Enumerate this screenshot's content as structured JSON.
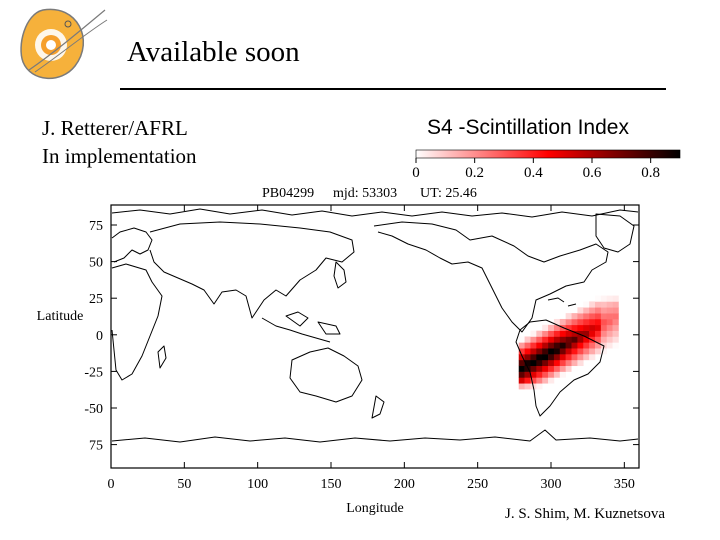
{
  "slide": {
    "title": "Available soon",
    "credit_lines": [
      "J. Retterer/AFRL",
      "In implementation"
    ],
    "footer_credit": "J. S. Shim, M. Kuznetsova",
    "logo_icon": "sun-icon"
  },
  "colorbar": {
    "title": "S4 -Scintillation Index",
    "ticks": [
      "0",
      "0.2",
      "0.4",
      "0.6",
      "0.8"
    ],
    "range": [
      0,
      0.9
    ],
    "colors": [
      "#ffffff",
      "#ff0000",
      "#000000"
    ]
  },
  "map": {
    "run_label": "PB04299",
    "mjd_label": "mjd: 53303",
    "ut_label": "UT: 25.46",
    "xlabel": "Longitude",
    "ylabel": "Latitude",
    "lon_range": [
      0,
      360
    ],
    "lat_range": [
      -90,
      90
    ],
    "lon_ticks": [
      "0",
      "50",
      "100",
      "150",
      "200",
      "250",
      "300",
      "350"
    ],
    "lat_ticks": [
      "75",
      "50",
      "25",
      "0",
      "-25",
      "-50",
      "75"
    ],
    "coastline_color": "#000000",
    "scintillation_region": "South America"
  }
}
